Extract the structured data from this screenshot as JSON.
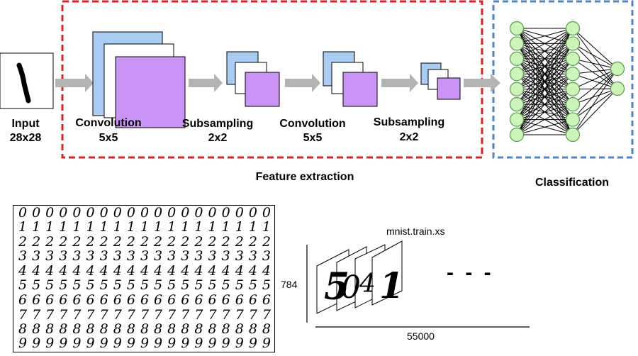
{
  "labels": {
    "input": "Input",
    "input_size": "28x28",
    "conv1": "Convolution",
    "conv1_size": "5x5",
    "sub1": "Subsampling",
    "sub1_size": "2x2",
    "conv2": "Convolution",
    "conv2_size": "5x5",
    "sub2": "Subsampling",
    "sub2_size": "2x2",
    "feature_extraction": "Feature extraction",
    "classification": "Classification"
  },
  "dataset": {
    "name": "mnist.train.xs",
    "rows_label": "784",
    "cols_label": "55000",
    "ellipsis": "- - -",
    "digit_rows": [
      "0000000000000000000",
      "1111111111111111111",
      "2222222222222222222",
      "3333333333333333333",
      "4444444444444444444",
      "5555555555555555555",
      "6666666666666666666",
      "7777777777777777777",
      "8888888888888888888",
      "9999999999999999999"
    ],
    "slide_glyphs": [
      "5",
      "0",
      "4",
      "1"
    ]
  },
  "colors": {
    "red_dash": "#e02020",
    "blue_dash": "#4a86c8",
    "blue_map": "#a9cdf2",
    "purple_map": "#c994f5",
    "arrow": "#b3b3b3",
    "node_fill": "#ccf5b8",
    "node_stroke": "#5a9a4a"
  },
  "network": {
    "layers": [
      8,
      8,
      2
    ]
  }
}
